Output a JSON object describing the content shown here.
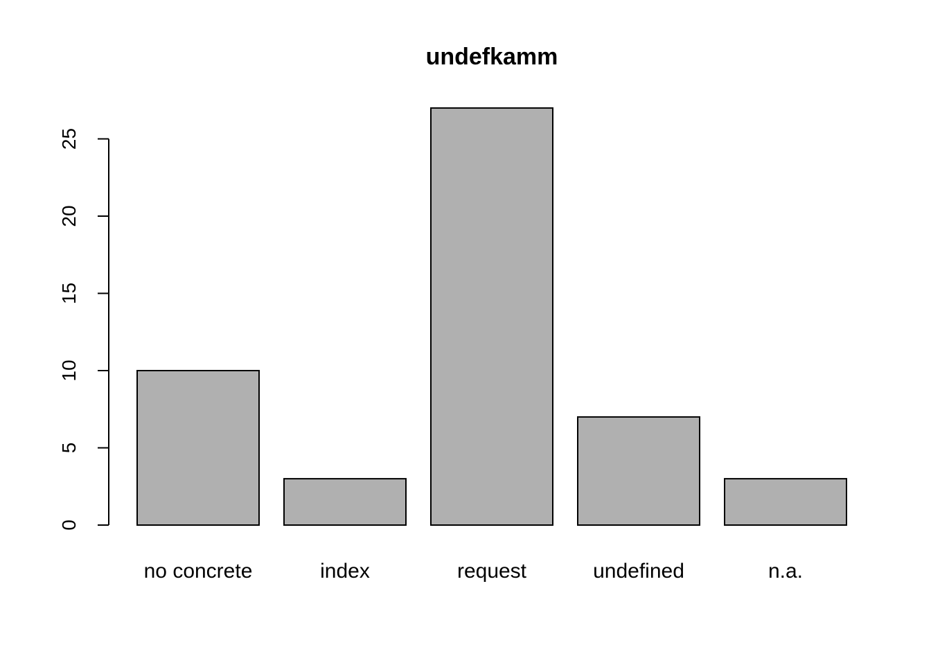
{
  "chart_data": {
    "type": "bar",
    "title": "undefkamm",
    "xlabel": "",
    "ylabel": "",
    "categories": [
      "no concrete",
      "index",
      "request",
      "undefined",
      "n.a."
    ],
    "values": [
      10,
      3,
      27,
      7,
      3
    ],
    "yticks": [
      "0",
      "5",
      "10",
      "15",
      "20",
      "25"
    ],
    "ylim": [
      0,
      27
    ],
    "grid": false,
    "colors": {
      "bar_fill": "#b0b0b0",
      "bar_stroke": "#000000"
    }
  }
}
